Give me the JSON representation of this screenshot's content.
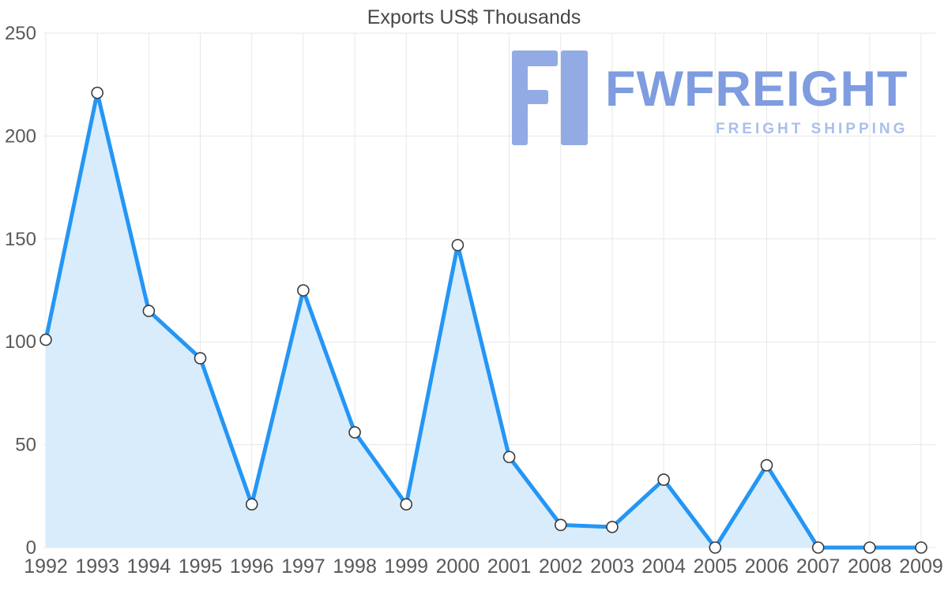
{
  "chart_data": {
    "type": "area",
    "title": "Exports US$ Thousands",
    "categories": [
      "1992",
      "1993",
      "1994",
      "1995",
      "1996",
      "1997",
      "1998",
      "1999",
      "2000",
      "2001",
      "2002",
      "2003",
      "2004",
      "2005",
      "2006",
      "2007",
      "2008",
      "2009"
    ],
    "values": [
      101,
      221,
      115,
      92,
      21,
      125,
      56,
      21,
      147,
      44,
      11,
      10,
      33,
      0,
      40,
      0,
      0,
      0
    ],
    "xlabel": "",
    "ylabel": "",
    "ylim": [
      0,
      250
    ],
    "yticks": [
      0,
      50,
      100,
      150,
      200,
      250
    ],
    "grid": "on",
    "legend": "none",
    "marker": "open-circle"
  },
  "logo": {
    "brand": "FWFREIGHT",
    "tagline": "FREIGHT SHIPPING"
  },
  "colors": {
    "line": "#2496f5",
    "area": "#d9ecfc",
    "grid": "#e7e7e7",
    "tick": "#595959",
    "title": "#474747",
    "marker_fill": "#ffffff",
    "marker_stroke": "#3a3a3a",
    "logo_brand": "#7e9cdf",
    "logo_icon": "#93abe4",
    "logo_tagline": "#a9bfec"
  }
}
